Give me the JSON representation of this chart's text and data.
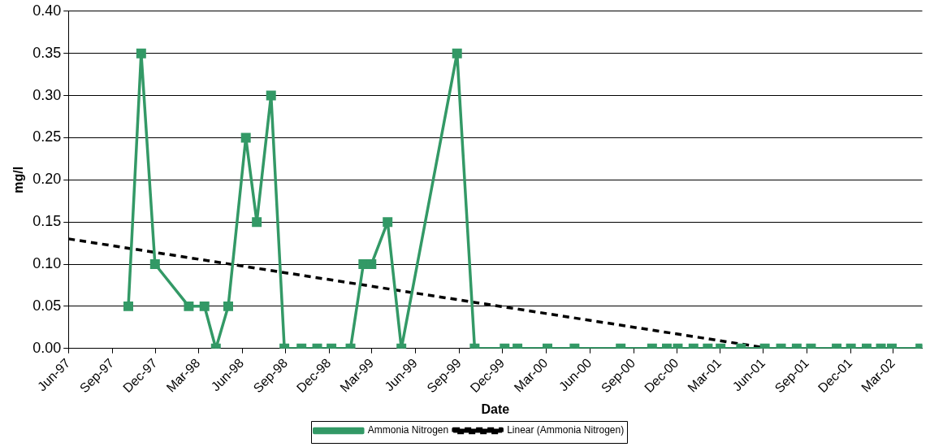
{
  "chart_data": {
    "type": "line",
    "xlabel": "Date",
    "ylabel": "mg/l",
    "xlim": [
      "1997-06-01",
      "2002-05-01"
    ],
    "xticks": [
      {
        "value": "1997-06-01",
        "label": "Jun-97"
      },
      {
        "value": "1997-09-01",
        "label": "Sep-97"
      },
      {
        "value": "1997-12-01",
        "label": "Dec-97"
      },
      {
        "value": "1998-03-01",
        "label": "Mar-98"
      },
      {
        "value": "1998-06-01",
        "label": "Jun-98"
      },
      {
        "value": "1998-09-01",
        "label": "Sep-98"
      },
      {
        "value": "1998-12-01",
        "label": "Dec-98"
      },
      {
        "value": "1999-03-01",
        "label": "Mar-99"
      },
      {
        "value": "1999-06-01",
        "label": "Jun-99"
      },
      {
        "value": "1999-09-01",
        "label": "Sep-99"
      },
      {
        "value": "1999-12-01",
        "label": "Dec-99"
      },
      {
        "value": "2000-03-01",
        "label": "Mar-00"
      },
      {
        "value": "2000-06-01",
        "label": "Jun-00"
      },
      {
        "value": "2000-09-01",
        "label": "Sep-00"
      },
      {
        "value": "2000-12-01",
        "label": "Dec-00"
      },
      {
        "value": "2001-03-01",
        "label": "Mar-01"
      },
      {
        "value": "2001-06-01",
        "label": "Jun-01"
      },
      {
        "value": "2001-09-01",
        "label": "Sep-01"
      },
      {
        "value": "2001-12-01",
        "label": "Dec-01"
      },
      {
        "value": "2002-03-01",
        "label": "Mar-02"
      }
    ],
    "ylim": [
      0,
      0.4
    ],
    "yticks": [
      {
        "value": 0,
        "label": "0.00"
      },
      {
        "value": 0.05,
        "label": "0.05"
      },
      {
        "value": 0.1,
        "label": "0.10"
      },
      {
        "value": 0.15,
        "label": "0.15"
      },
      {
        "value": 0.2,
        "label": "0.20"
      },
      {
        "value": 0.25,
        "label": "0.25"
      },
      {
        "value": 0.3,
        "label": "0.30"
      },
      {
        "value": 0.35,
        "label": "0.35"
      },
      {
        "value": 0.4,
        "label": "0.40"
      }
    ],
    "grid": "y",
    "legend": "bottom",
    "series": [
      {
        "name": "Ammonia Nitrogen",
        "color": "#339966",
        "marker": "square",
        "line_style": "solid",
        "x": [
          "1997-10-05",
          "1997-11-01",
          "1997-11-30",
          "1998-02-09",
          "1998-03-14",
          "1998-04-07",
          "1998-05-03",
          "1998-06-09",
          "1998-07-02",
          "1998-08-01",
          "1998-08-29",
          "1998-10-04",
          "1998-11-06",
          "1998-12-06",
          "1999-01-15",
          "1999-02-11",
          "1999-02-28",
          "1999-04-03",
          "1999-05-02",
          "1999-08-27",
          "1999-10-03",
          "1999-12-05",
          "2000-01-01",
          "2000-03-04",
          "2000-04-30",
          "2000-08-05",
          "2000-10-10",
          "2000-11-10",
          "2000-12-03",
          "2001-01-05",
          "2001-02-04",
          "2001-03-03",
          "2001-04-15",
          "2001-06-04",
          "2001-07-08",
          "2001-08-10",
          "2001-09-09",
          "2001-11-02",
          "2001-12-02",
          "2002-01-04",
          "2002-02-03",
          "2002-02-26",
          "2002-04-27"
        ],
        "values": [
          0.05,
          0.35,
          0.1,
          0.05,
          0.05,
          0,
          0.05,
          0.25,
          0.15,
          0.3,
          0,
          0,
          0,
          0,
          0,
          0.1,
          0.1,
          0.15,
          0,
          0.35,
          0,
          0,
          0,
          0,
          0,
          0,
          0,
          0,
          0,
          0,
          0,
          0,
          0,
          0,
          0,
          0,
          0,
          0,
          0,
          0,
          0,
          0,
          0
        ]
      },
      {
        "name": "Linear (Ammonia Nitrogen)",
        "color": "#000000",
        "marker": "none",
        "line_style": "dashed",
        "x": [
          "1997-06-01",
          "2001-06-14"
        ],
        "values": [
          0.13,
          0
        ]
      }
    ]
  }
}
